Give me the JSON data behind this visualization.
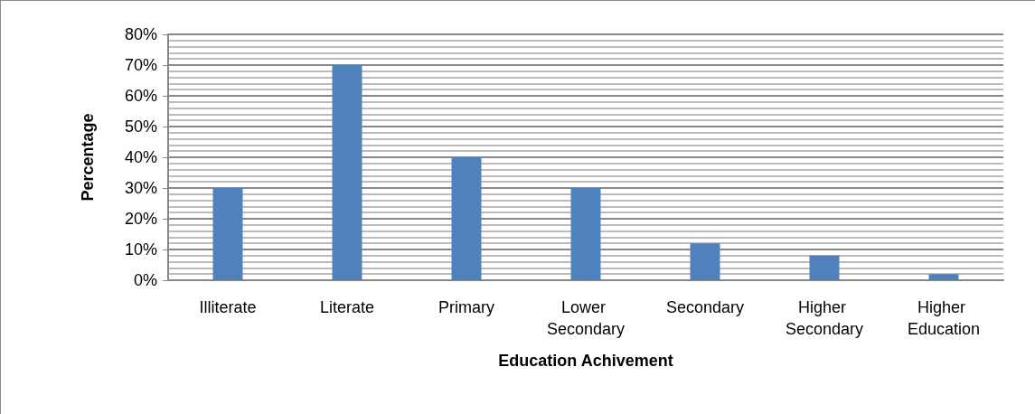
{
  "chart_data": {
    "type": "bar",
    "xlabel": "Education Achivement",
    "ylabel": "Percentage",
    "categories": [
      "Illiterate",
      "Literate",
      "Primary",
      "Lower Secondary",
      "Secondary",
      "Higher Secondary",
      "Higher Education"
    ],
    "values": [
      30,
      70,
      40,
      30,
      12,
      8,
      2
    ],
    "color": "#4f81bd",
    "ylim": [
      0,
      80
    ],
    "yticks": [
      {
        "value": 0,
        "label": "0%"
      },
      {
        "value": 2,
        "label": null
      },
      {
        "value": 4,
        "label": null
      },
      {
        "value": 6,
        "label": null
      },
      {
        "value": 8,
        "label": null
      },
      {
        "value": 10,
        "label": "10%"
      },
      {
        "value": 12,
        "label": null
      },
      {
        "value": 14,
        "label": null
      },
      {
        "value": 16,
        "label": null
      },
      {
        "value": 18,
        "label": null
      },
      {
        "value": 20,
        "label": "20%"
      },
      {
        "value": 22,
        "label": null
      },
      {
        "value": 24,
        "label": null
      },
      {
        "value": 26,
        "label": null
      },
      {
        "value": 28,
        "label": null
      },
      {
        "value": 30,
        "label": "30%"
      },
      {
        "value": 32,
        "label": null
      },
      {
        "value": 34,
        "label": null
      },
      {
        "value": 36,
        "label": null
      },
      {
        "value": 38,
        "label": null
      },
      {
        "value": 40,
        "label": "40%"
      },
      {
        "value": 42,
        "label": null
      },
      {
        "value": 44,
        "label": null
      },
      {
        "value": 46,
        "label": null
      },
      {
        "value": 48,
        "label": null
      },
      {
        "value": 50,
        "label": "50%"
      },
      {
        "value": 52,
        "label": null
      },
      {
        "value": 54,
        "label": null
      },
      {
        "value": 56,
        "label": null
      },
      {
        "value": 58,
        "label": null
      },
      {
        "value": 60,
        "label": "60%"
      },
      {
        "value": 62,
        "label": null
      },
      {
        "value": 64,
        "label": null
      },
      {
        "value": 66,
        "label": null
      },
      {
        "value": 68,
        "label": null
      },
      {
        "value": 70,
        "label": "70%"
      },
      {
        "value": 72,
        "label": null
      },
      {
        "value": 74,
        "label": null
      },
      {
        "value": 76,
        "label": null
      },
      {
        "value": 78,
        "label": null
      },
      {
        "value": 80,
        "label": "80%"
      }
    ],
    "grid": "y"
  }
}
